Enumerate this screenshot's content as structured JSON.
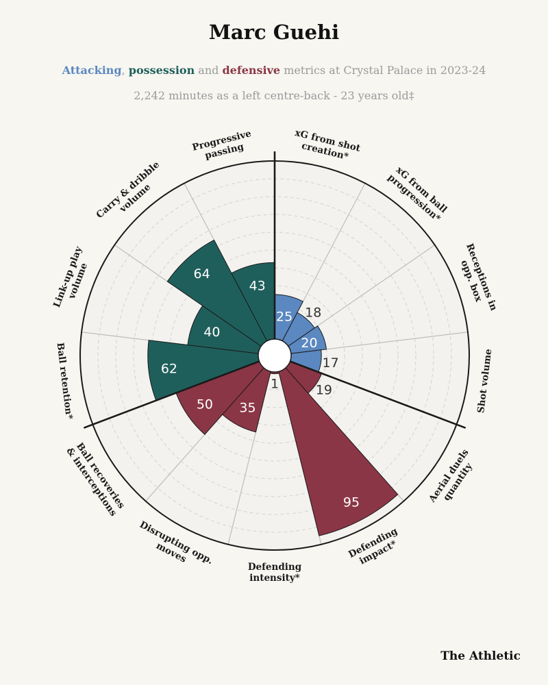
{
  "header": {
    "title": "Marc Guehi",
    "subtitle_attacking": "Attacking",
    "subtitle_sep1": ", ",
    "subtitle_possession": "possession",
    "subtitle_and": " and ",
    "subtitle_defensive": "defensive",
    "subtitle_rest": " metrics at Crystal Palace in 2023-24",
    "subtitle2": "2,242 minutes as a left centre-back - 23 years old‡"
  },
  "footer": {
    "logo": "The Athletic"
  },
  "colors": {
    "attacking": "#5b88c0",
    "possession": "#1f5f5b",
    "defensive": "#8b3646",
    "background": "#f7f6f1",
    "ring": "#1a1a1a",
    "grid": "#bdbdbd"
  },
  "chart_data": {
    "type": "polar-bar",
    "title": "Marc Guehi",
    "scale": [
      0,
      100
    ],
    "metrics": [
      {
        "label": [
          "xG from shot",
          "creation*"
        ],
        "value": 25,
        "group": "attacking"
      },
      {
        "label": [
          "xG from ball",
          "progression*"
        ],
        "value": 18,
        "group": "attacking"
      },
      {
        "label": [
          "Receptions in",
          "opp. box"
        ],
        "value": 20,
        "group": "attacking"
      },
      {
        "label": [
          "Shot volume"
        ],
        "value": 17,
        "group": "attacking"
      },
      {
        "label": [
          "Aerial duels",
          "quantity"
        ],
        "value": 19,
        "group": "defensive"
      },
      {
        "label": [
          "Defending",
          "impact*"
        ],
        "value": 95,
        "group": "defensive"
      },
      {
        "label": [
          "Defending",
          "intensity*"
        ],
        "value": 1,
        "group": "defensive"
      },
      {
        "label": [
          "Disrupting opp.",
          "moves"
        ],
        "value": 35,
        "group": "defensive"
      },
      {
        "label": [
          "Ball recoveries",
          "& interceptions"
        ],
        "value": 50,
        "group": "defensive"
      },
      {
        "label": [
          "Ball retention*"
        ],
        "value": 62,
        "group": "possession"
      },
      {
        "label": [
          "Link-up play",
          "volume"
        ],
        "value": 40,
        "group": "possession"
      },
      {
        "label": [
          "Carry & dribble",
          "volume"
        ],
        "value": 64,
        "group": "possession"
      },
      {
        "label": [
          "Progressive",
          "passing"
        ],
        "value": 43,
        "group": "possession"
      }
    ]
  }
}
